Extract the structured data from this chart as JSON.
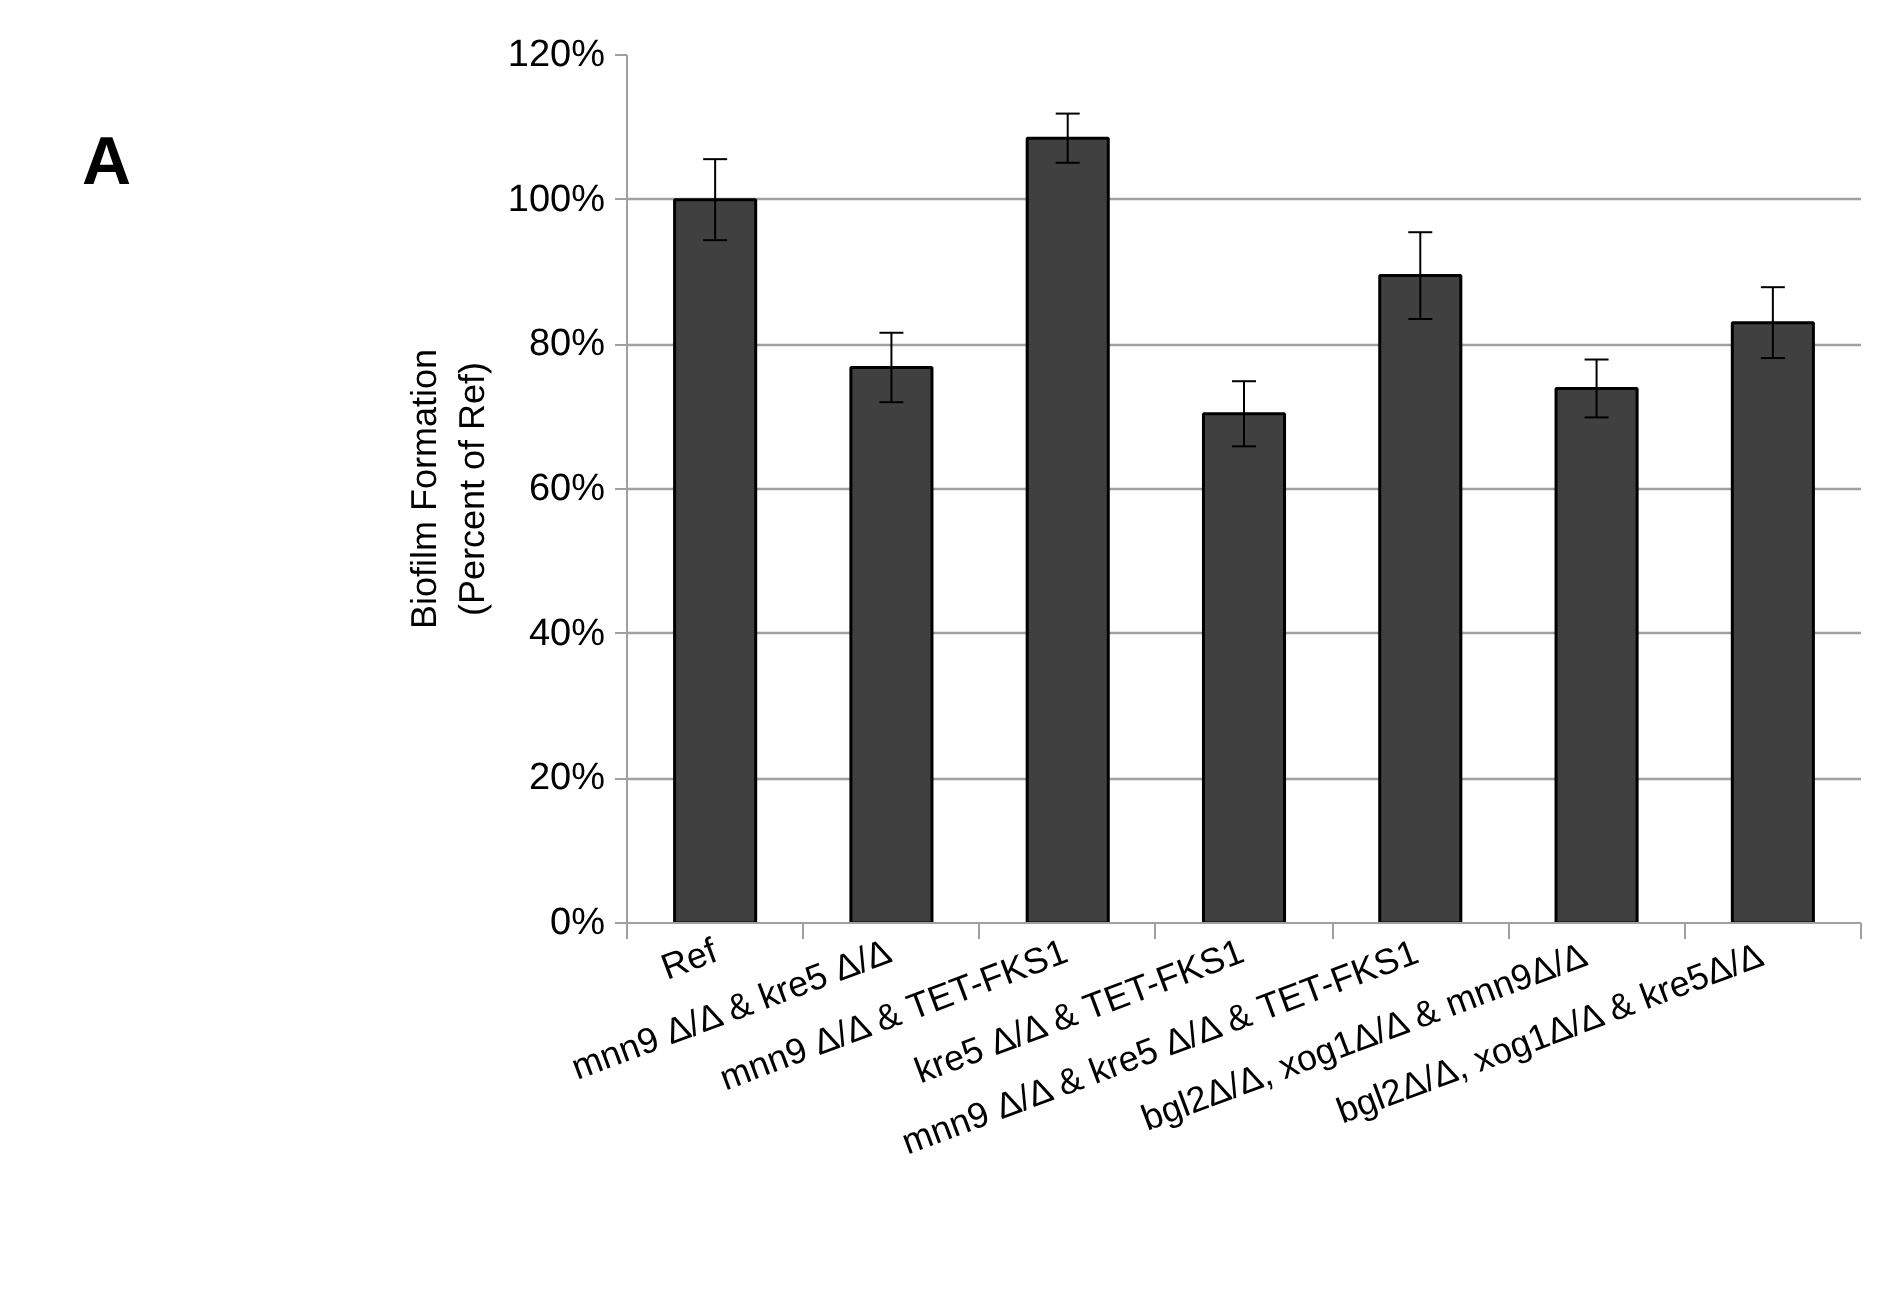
{
  "chart_data": {
    "type": "bar",
    "ylabel": "Biofilm Formation\n(Percent of Ref)",
    "categories": [
      "Ref",
      "mnn9 Δ/Δ & kre5 Δ/Δ",
      "mnn9 Δ/Δ & TET-FKS1",
      "kre5 Δ/Δ & TET-FKS1",
      "mnn9 Δ/Δ & kre5 Δ/Δ & TET-FKS1",
      "bgl2Δ/Δ, xog1Δ/Δ  & mnn9Δ/Δ",
      "bgl2Δ/Δ, xog1Δ/Δ  & kre5Δ/Δ"
    ],
    "values": [
      100,
      76.8,
      108.5,
      70.4,
      89.5,
      73.9,
      83
    ],
    "errors": [
      5.6,
      4.8,
      3.4,
      4.5,
      6.0,
      4.0,
      4.9
    ],
    "color": "#404040",
    "ylim": [
      0,
      120
    ],
    "yticks": [
      {
        "value": 0,
        "label": "0%"
      },
      {
        "value": 20,
        "label": "20%"
      },
      {
        "value": 40,
        "label": "40%"
      },
      {
        "value": 60,
        "label": "60%"
      },
      {
        "value": 80,
        "label": "80%"
      },
      {
        "value": 100,
        "label": "100%"
      },
      {
        "value": 120,
        "label": "120%"
      }
    ],
    "grid": "y",
    "annotations": [
      "A"
    ]
  }
}
